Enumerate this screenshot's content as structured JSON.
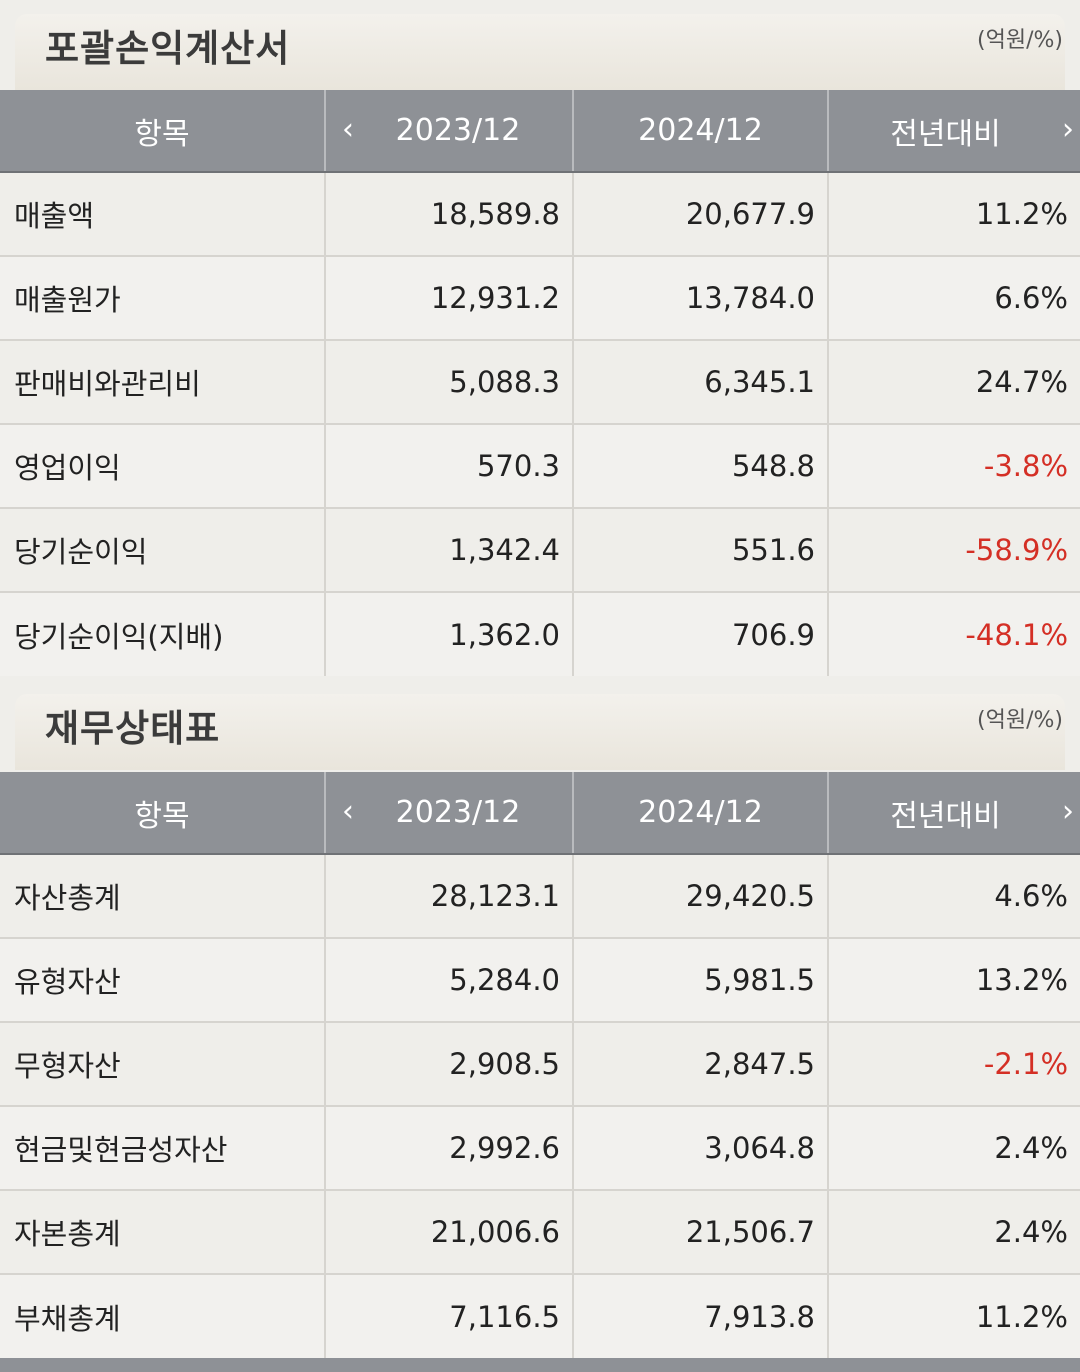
{
  "income": {
    "title": "포괄손익계산서",
    "unit": "(억원/%)",
    "headers": {
      "item": "항목",
      "prev": "2023/12",
      "curr": "2024/12",
      "change": "전년대비"
    },
    "rows": [
      {
        "label": "매출액",
        "prev": "18,589.8",
        "curr": "20,677.9",
        "change": "11.2%"
      },
      {
        "label": "매출원가",
        "prev": "12,931.2",
        "curr": "13,784.0",
        "change": "6.6%"
      },
      {
        "label": "판매비와관리비",
        "prev": "5,088.3",
        "curr": "6,345.1",
        "change": "24.7%"
      },
      {
        "label": "영업이익",
        "prev": "570.3",
        "curr": "548.8",
        "change": "-3.8%"
      },
      {
        "label": "당기순이익",
        "prev": "1,342.4",
        "curr": "551.6",
        "change": "-58.9%"
      },
      {
        "label": "당기순이익(지배)",
        "prev": "1,362.0",
        "curr": "706.9",
        "change": "-48.1%"
      }
    ]
  },
  "balance": {
    "title": "재무상태표",
    "unit": "(억원/%)",
    "headers": {
      "item": "항목",
      "prev": "2023/12",
      "curr": "2024/12",
      "change": "전년대비"
    },
    "rows": [
      {
        "label": "자산총계",
        "prev": "28,123.1",
        "curr": "29,420.5",
        "change": "4.6%"
      },
      {
        "label": "유형자산",
        "prev": "5,284.0",
        "curr": "5,981.5",
        "change": "13.2%"
      },
      {
        "label": "무형자산",
        "prev": "2,908.5",
        "curr": "2,847.5",
        "change": "-2.1%"
      },
      {
        "label": "현금및현금성자산",
        "prev": "2,992.6",
        "curr": "3,064.8",
        "change": "2.4%"
      },
      {
        "label": "자본총계",
        "prev": "21,006.6",
        "curr": "21,506.7",
        "change": "2.4%"
      },
      {
        "label": "부채총계",
        "prev": "7,116.5",
        "curr": "7,913.8",
        "change": "11.2%"
      }
    ]
  },
  "icons": {
    "prev": "chevron-left-icon",
    "next": "chevron-right-icon"
  },
  "colors": {
    "header_bg": "#8e9196",
    "negative": "#d42f25"
  }
}
